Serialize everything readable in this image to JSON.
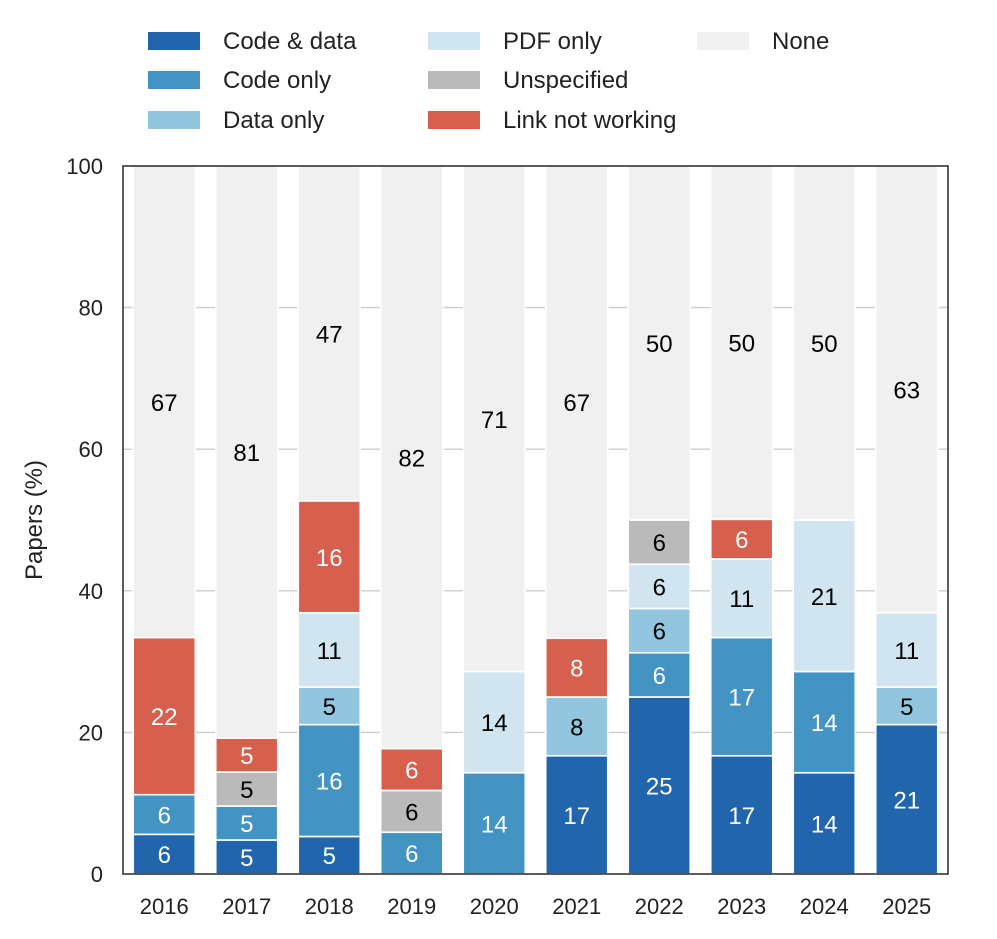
{
  "chart_data": {
    "type": "bar",
    "stacked": true,
    "categories": [
      "2016",
      "2017",
      "2018",
      "2019",
      "2020",
      "2021",
      "2022",
      "2023",
      "2024",
      "2025"
    ],
    "ylabel": "Papers (%)",
    "ylim": [
      0,
      100
    ],
    "yticks": [
      0,
      20,
      40,
      60,
      80,
      100
    ],
    "grid": "horizontal",
    "legend_position": "top",
    "series": [
      {
        "name": "Code & data",
        "color": "#2166ac",
        "text_color": "#ffffff",
        "values": [
          5.6,
          4.8,
          5.3,
          0,
          0,
          16.7,
          25,
          16.7,
          14.3,
          21.1
        ]
      },
      {
        "name": "Code only",
        "color": "#4393c3",
        "text_color": "#ffffff",
        "values": [
          5.6,
          4.8,
          15.8,
          5.9,
          14.3,
          0,
          6.25,
          16.7,
          14.3,
          0
        ]
      },
      {
        "name": "Data only",
        "color": "#92c5de",
        "text_color": "#000000",
        "values": [
          0,
          0,
          5.3,
          0,
          0,
          8.3,
          6.25,
          0,
          0,
          5.3
        ]
      },
      {
        "name": "PDF only",
        "color": "#d1e5f0",
        "text_color": "#000000",
        "values": [
          0,
          0,
          10.5,
          0,
          14.3,
          0,
          6.25,
          11.1,
          21.4,
          10.5
        ]
      },
      {
        "name": "Unspecified",
        "color": "#bababa",
        "text_color": "#000000",
        "values": [
          0,
          4.8,
          0,
          5.9,
          0,
          0,
          6.25,
          0,
          0,
          0
        ]
      },
      {
        "name": "Link not working",
        "color": "#d6604d",
        "text_color": "#ffffff",
        "values": [
          22.2,
          4.8,
          15.8,
          5.9,
          0,
          8.3,
          0,
          5.6,
          0,
          0
        ]
      },
      {
        "name": "None",
        "color": "#f0f0f0",
        "text_color": "#000000",
        "values": [
          66.6,
          80.8,
          47.3,
          82.3,
          71.4,
          66.7,
          50,
          49.9,
          50,
          63.1
        ]
      }
    ],
    "legend_order": [
      "Code & data",
      "Code only",
      "Data only",
      "PDF only",
      "Unspecified",
      "Link not working",
      "None"
    ]
  }
}
